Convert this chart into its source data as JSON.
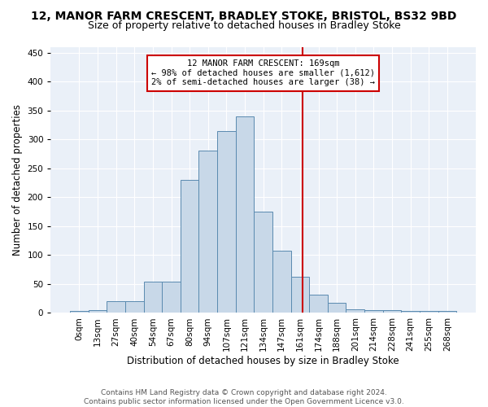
{
  "title1": "12, MANOR FARM CRESCENT, BRADLEY STOKE, BRISTOL, BS32 9BD",
  "title2": "Size of property relative to detached houses in Bradley Stoke",
  "xlabel": "Distribution of detached houses by size in Bradley Stoke",
  "ylabel": "Number of detached properties",
  "bin_labels": [
    "0sqm",
    "13sqm",
    "27sqm",
    "40sqm",
    "54sqm",
    "67sqm",
    "80sqm",
    "94sqm",
    "107sqm",
    "121sqm",
    "134sqm",
    "147sqm",
    "161sqm",
    "174sqm",
    "188sqm",
    "201sqm",
    "214sqm",
    "228sqm",
    "241sqm",
    "255sqm",
    "268sqm"
  ],
  "bar_heights": [
    3,
    5,
    21,
    21,
    54,
    54,
    230,
    280,
    315,
    340,
    175,
    107,
    62,
    32,
    17,
    6,
    5,
    5,
    3,
    3,
    3
  ],
  "bar_color": "#c8d8e8",
  "bar_edge_color": "#5a8ab0",
  "marker_label": "12 MANOR FARM CRESCENT: 169sqm",
  "marker_sublabel1": "← 98% of detached houses are smaller (1,612)",
  "marker_sublabel2": "2% of semi-detached houses are larger (38) →",
  "marker_color": "#cc0000",
  "annotation_box_color": "#cc0000",
  "ylim": [
    0,
    460
  ],
  "yticks": [
    0,
    50,
    100,
    150,
    200,
    250,
    300,
    350,
    400,
    450
  ],
  "background_color": "#eaf0f8",
  "footer_text": "Contains HM Land Registry data © Crown copyright and database right 2024.\nContains public sector information licensed under the Open Government Licence v3.0.",
  "title1_fontsize": 10,
  "title2_fontsize": 9,
  "xlabel_fontsize": 8.5,
  "ylabel_fontsize": 8.5,
  "tick_fontsize": 7.5,
  "footer_fontsize": 6.5,
  "ann_fontsize": 7.5
}
